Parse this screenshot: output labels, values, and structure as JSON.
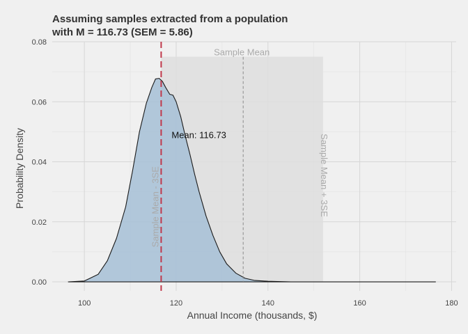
{
  "chart_data": {
    "type": "area",
    "title_line1": "Assuming samples extracted from a population",
    "title_line2": "with M = 116.73 (SEM = 5.86)",
    "xlabel": "Annual Income (thousands, $)",
    "ylabel": "Probability Density",
    "xlim": [
      93,
      181
    ],
    "ylim": [
      -0.003,
      0.08
    ],
    "x_ticks": [
      100,
      120,
      140,
      160,
      180
    ],
    "y_ticks": [
      0.0,
      0.02,
      0.04,
      0.06,
      0.08
    ],
    "x_tick_labels": [
      "100",
      "120",
      "140",
      "160",
      "180"
    ],
    "y_tick_labels": [
      "0.00",
      "0.02",
      "0.04",
      "0.06",
      "0.08"
    ],
    "grid": true,
    "density": {
      "x": [
        96.5,
        100,
        103,
        105,
        107,
        109,
        110.5,
        112,
        113.5,
        114.7,
        115.5,
        116.3,
        117,
        117.7,
        118.6,
        119.3,
        120,
        121,
        122,
        123,
        124,
        125,
        126.5,
        128,
        129.5,
        131,
        133,
        135,
        137,
        140,
        145,
        150,
        160,
        176.5
      ],
      "y": [
        0.0,
        0.0003,
        0.0025,
        0.007,
        0.0145,
        0.025,
        0.037,
        0.05,
        0.0595,
        0.0648,
        0.0676,
        0.0678,
        0.0668,
        0.0648,
        0.0625,
        0.0622,
        0.06,
        0.055,
        0.0485,
        0.0425,
        0.036,
        0.03,
        0.022,
        0.0155,
        0.01,
        0.006,
        0.0029,
        0.0012,
        0.0005,
        0.0002,
        0.0,
        0.0,
        0.0,
        0.0
      ],
      "fill_color": "#a6bfd6",
      "line_color": "#1a1a1a"
    },
    "mean_line": {
      "x": 116.73,
      "color": "#c0394b",
      "label": "Mean: 116.73",
      "label_x": 119,
      "label_y": 0.049
    },
    "sample_mean_band": {
      "x_start": 116.73,
      "x_end": 152,
      "y_top": 0.075,
      "color": "#dedede",
      "sample_mean_x": 134.6,
      "top_label": "Sample Mean",
      "left_label": "Sample Mean - 3SE",
      "right_label": "Sample Mean + 3SE"
    }
  }
}
